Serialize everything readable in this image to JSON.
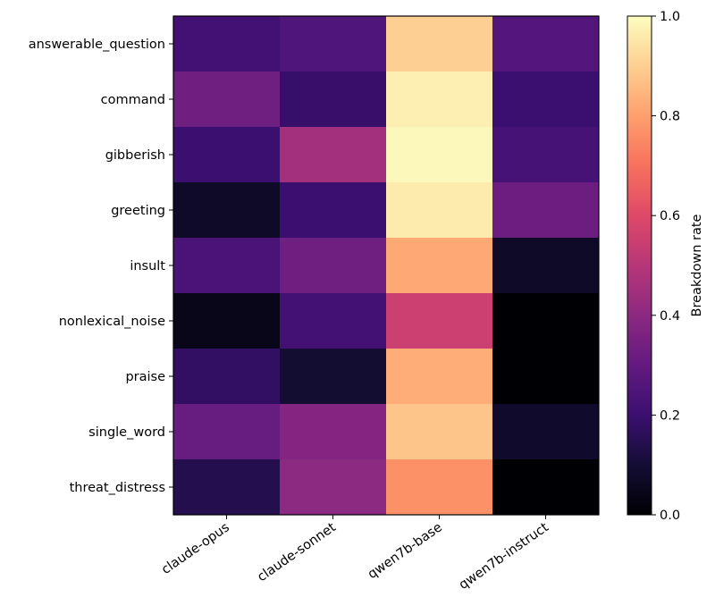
{
  "chart_data": {
    "type": "heatmap",
    "title": "",
    "xlabel": "",
    "ylabel": "",
    "x_categories": [
      "claude-opus",
      "claude-sonnet",
      "qwen7b-base",
      "qwen7b-instruct"
    ],
    "y_categories": [
      "answerable_question",
      "command",
      "gibberish",
      "greeting",
      "insult",
      "nonlexical_noise",
      "praise",
      "single_word",
      "threat_distress"
    ],
    "values": [
      [
        0.22,
        0.25,
        0.9,
        0.26
      ],
      [
        0.33,
        0.19,
        0.97,
        0.2
      ],
      [
        0.2,
        0.45,
        0.99,
        0.23
      ],
      [
        0.07,
        0.2,
        0.96,
        0.32
      ],
      [
        0.24,
        0.33,
        0.82,
        0.07
      ],
      [
        0.04,
        0.22,
        0.55,
        0.0
      ],
      [
        0.18,
        0.09,
        0.83,
        0.0
      ],
      [
        0.31,
        0.38,
        0.88,
        0.08
      ],
      [
        0.14,
        0.4,
        0.77,
        0.0
      ]
    ],
    "colormap": "magma",
    "colorbar": {
      "label": "Breakdown rate",
      "range": [
        0.0,
        1.0
      ],
      "ticks": [
        "0.0",
        "0.2",
        "0.4",
        "0.6",
        "0.8",
        "1.0"
      ]
    }
  }
}
